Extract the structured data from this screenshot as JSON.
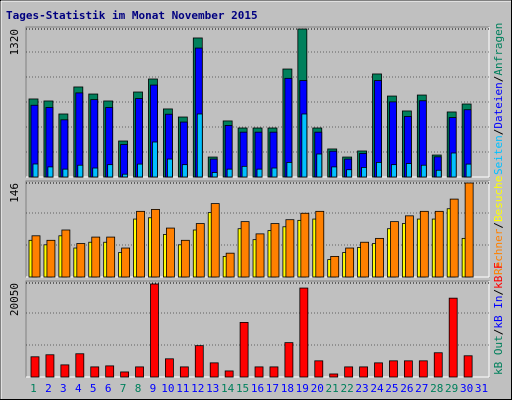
{
  "chart_data": [
    {
      "type": "bar",
      "title": "Tages-Statistik im Monat November 2015",
      "ylim": [
        0,
        1320
      ],
      "yticks": [
        1320
      ],
      "grid": true,
      "legend_separator": "/",
      "series": [
        {
          "name": "Anfragen",
          "color": "#00805c",
          "values": [
            696,
            678,
            562,
            803,
            740,
            678,
            321,
            758,
            874,
            607,
            535,
            1240,
            178,
            500,
            437,
            437,
            437,
            963,
            1320,
            437,
            250,
            178,
            232,
            919,
            722,
            589,
            731,
            196,
            580,
            651,
            null
          ]
        },
        {
          "name": "Dateien",
          "color": "#0000ff",
          "values": [
            640,
            620,
            510,
            750,
            690,
            620,
            290,
            700,
            820,
            560,
            490,
            1150,
            160,
            460,
            400,
            400,
            400,
            880,
            860,
            400,
            230,
            160,
            210,
            860,
            670,
            540,
            680,
            180,
            530,
            600,
            null
          ]
        },
        {
          "name": "Seiten",
          "color": "#00c0ff",
          "values": [
            116,
            90,
            70,
            105,
            80,
            110,
            25,
            115,
            312,
            160,
            110,
            562,
            40,
            70,
            95,
            70,
            80,
            130,
            562,
            205,
            90,
            65,
            85,
            130,
            110,
            120,
            105,
            60,
            214,
            115,
            null
          ]
        }
      ]
    },
    {
      "type": "bar",
      "ylim": [
        0,
        146
      ],
      "yticks": [
        146
      ],
      "grid": true,
      "legend_separator": "/",
      "series": [
        {
          "name": "Besuche",
          "color": "#ffff00",
          "values": [
            57,
            50,
            64,
            45,
            54,
            54,
            38,
            90,
            92,
            66,
            50,
            73,
            100,
            32,
            75,
            58,
            72,
            78,
            88,
            90,
            27,
            38,
            46,
            52,
            75,
            83,
            90,
            90,
            106,
            60,
            null
          ]
        },
        {
          "name": "Rechner",
          "color": "#ff8000",
          "values": [
            64,
            57,
            73,
            52,
            62,
            62,
            45,
            102,
            105,
            76,
            57,
            83,
            114,
            37,
            86,
            67,
            83,
            89,
            99,
            102,
            32,
            45,
            54,
            60,
            86,
            95,
            102,
            102,
            121,
            146,
            null
          ]
        }
      ]
    },
    {
      "type": "bar",
      "ylim": [
        0,
        20050
      ],
      "yticks": [
        20050
      ],
      "grid": true,
      "legend_separator": "/",
      "categories": [
        "1",
        "2",
        "3",
        "4",
        "5",
        "6",
        "7",
        "8",
        "9",
        "10",
        "11",
        "12",
        "13",
        "14",
        "15",
        "16",
        "17",
        "18",
        "19",
        "20",
        "21",
        "22",
        "23",
        "24",
        "25",
        "26",
        "27",
        "28",
        "29",
        "30",
        "31"
      ],
      "category_colors": [
        "#00805c",
        "#0000ff",
        "#0000ff",
        "#0000ff",
        "#0000ff",
        "#0000ff",
        "#00805c",
        "#00805c",
        "#0000ff",
        "#0000ff",
        "#0000ff",
        "#0000ff",
        "#0000ff",
        "#00805c",
        "#00805c",
        "#0000ff",
        "#0000ff",
        "#0000ff",
        "#0000ff",
        "#0000ff",
        "#00805c",
        "#00805c",
        "#0000ff",
        "#0000ff",
        "#0000ff",
        "#0000ff",
        "#0000ff",
        "#00805c",
        "#00805c",
        "#0000ff",
        "#0000ff"
      ],
      "series": [
        {
          "name": "kB F",
          "color": "#ff0000",
          "values": [
            4312,
            4743,
            2587,
            4959,
            2156,
            2372,
            1078,
            2156,
            19835,
            3881,
            2156,
            6684,
            3018,
            1294,
            11642,
            2156,
            2156,
            7330,
            18973,
            3450,
            647,
            2156,
            2156,
            3018,
            3450,
            3450,
            3450,
            5174,
            16817,
            4528,
            null
          ]
        },
        {
          "name": "kB In",
          "color": "#0000ff",
          "values": [
            null,
            null,
            null,
            null,
            null,
            null,
            null,
            null,
            null,
            null,
            null,
            null,
            null,
            null,
            null,
            null,
            null,
            null,
            null,
            null,
            null,
            null,
            null,
            null,
            null,
            null,
            null,
            null,
            null,
            null,
            null
          ]
        },
        {
          "name": "kB Out",
          "color": "#00805c",
          "values": [
            null,
            null,
            null,
            null,
            null,
            null,
            null,
            null,
            null,
            null,
            null,
            null,
            null,
            null,
            null,
            null,
            null,
            null,
            null,
            null,
            null,
            null,
            null,
            null,
            null,
            null,
            null,
            null,
            null,
            null,
            null
          ]
        }
      ]
    }
  ]
}
